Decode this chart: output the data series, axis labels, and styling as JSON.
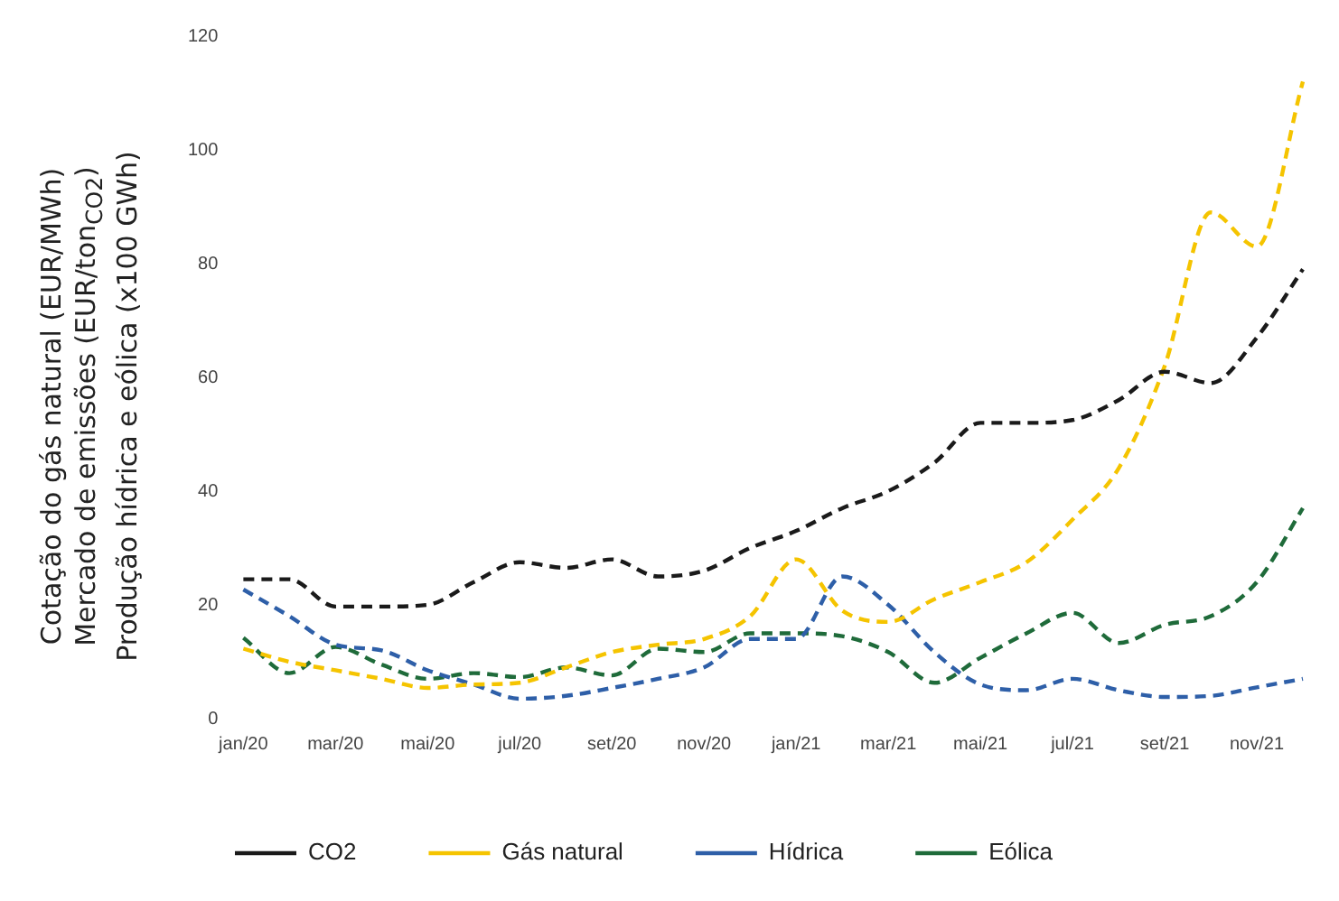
{
  "chart_data": {
    "type": "line",
    "ylabel": "Cotação do gás natural (EUR/MWh)\nMercado de emissões (EUR/ton$_{CO2}$)\nProdução hídrica e eólica (x100 GWh)",
    "categories": [
      "jan/20",
      null,
      "mar/20",
      null,
      "mai/20",
      null,
      "jul/20",
      null,
      "set/20",
      null,
      "nov/20",
      null,
      "jan/21",
      null,
      "mar/21",
      null,
      "mai/21",
      null,
      "jul/21",
      null,
      "set/21",
      null,
      "nov/21",
      null
    ],
    "series": [
      {
        "name": "CO2",
        "color": "#1a1a1a",
        "values": [
          24.5,
          24.5,
          19.7,
          19.7,
          20,
          24,
          27.5,
          26.5,
          28,
          25,
          26,
          30,
          33,
          37,
          40,
          45,
          52,
          52,
          52.5,
          56,
          61,
          59,
          67,
          79
        ]
      },
      {
        "name": "Gás natural",
        "color": "#f5c400",
        "values": [
          12.3,
          10,
          8.5,
          7,
          5.4,
          6,
          6.3,
          9,
          11.7,
          13,
          14,
          18,
          28,
          19,
          17,
          21,
          24,
          27.5,
          35,
          44,
          62,
          89,
          83,
          112
        ]
      },
      {
        "name": "Hídrica",
        "color": "#2e5fa8",
        "values": [
          22.7,
          18,
          13,
          12,
          8.5,
          6,
          3.5,
          4,
          5.4,
          7,
          9,
          14,
          14,
          25,
          20,
          11.7,
          6,
          5,
          7,
          5,
          3.8,
          4,
          5.5,
          7
        ]
      },
      {
        "name": "Eólica",
        "color": "#1f6b3a",
        "values": [
          14.2,
          8,
          12.6,
          9.5,
          7,
          8,
          7.3,
          9,
          7.6,
          12.3,
          11.7,
          15,
          15,
          14.5,
          11.7,
          6.3,
          10.7,
          15,
          18.6,
          13.3,
          16.5,
          18,
          24,
          37
        ]
      }
    ],
    "ylim": [
      0,
      120
    ],
    "yticks": [
      0,
      20,
      40,
      60,
      80,
      100,
      120
    ],
    "grid": false,
    "legend": "bottom",
    "marker": "none",
    "line_style": "dashed"
  }
}
